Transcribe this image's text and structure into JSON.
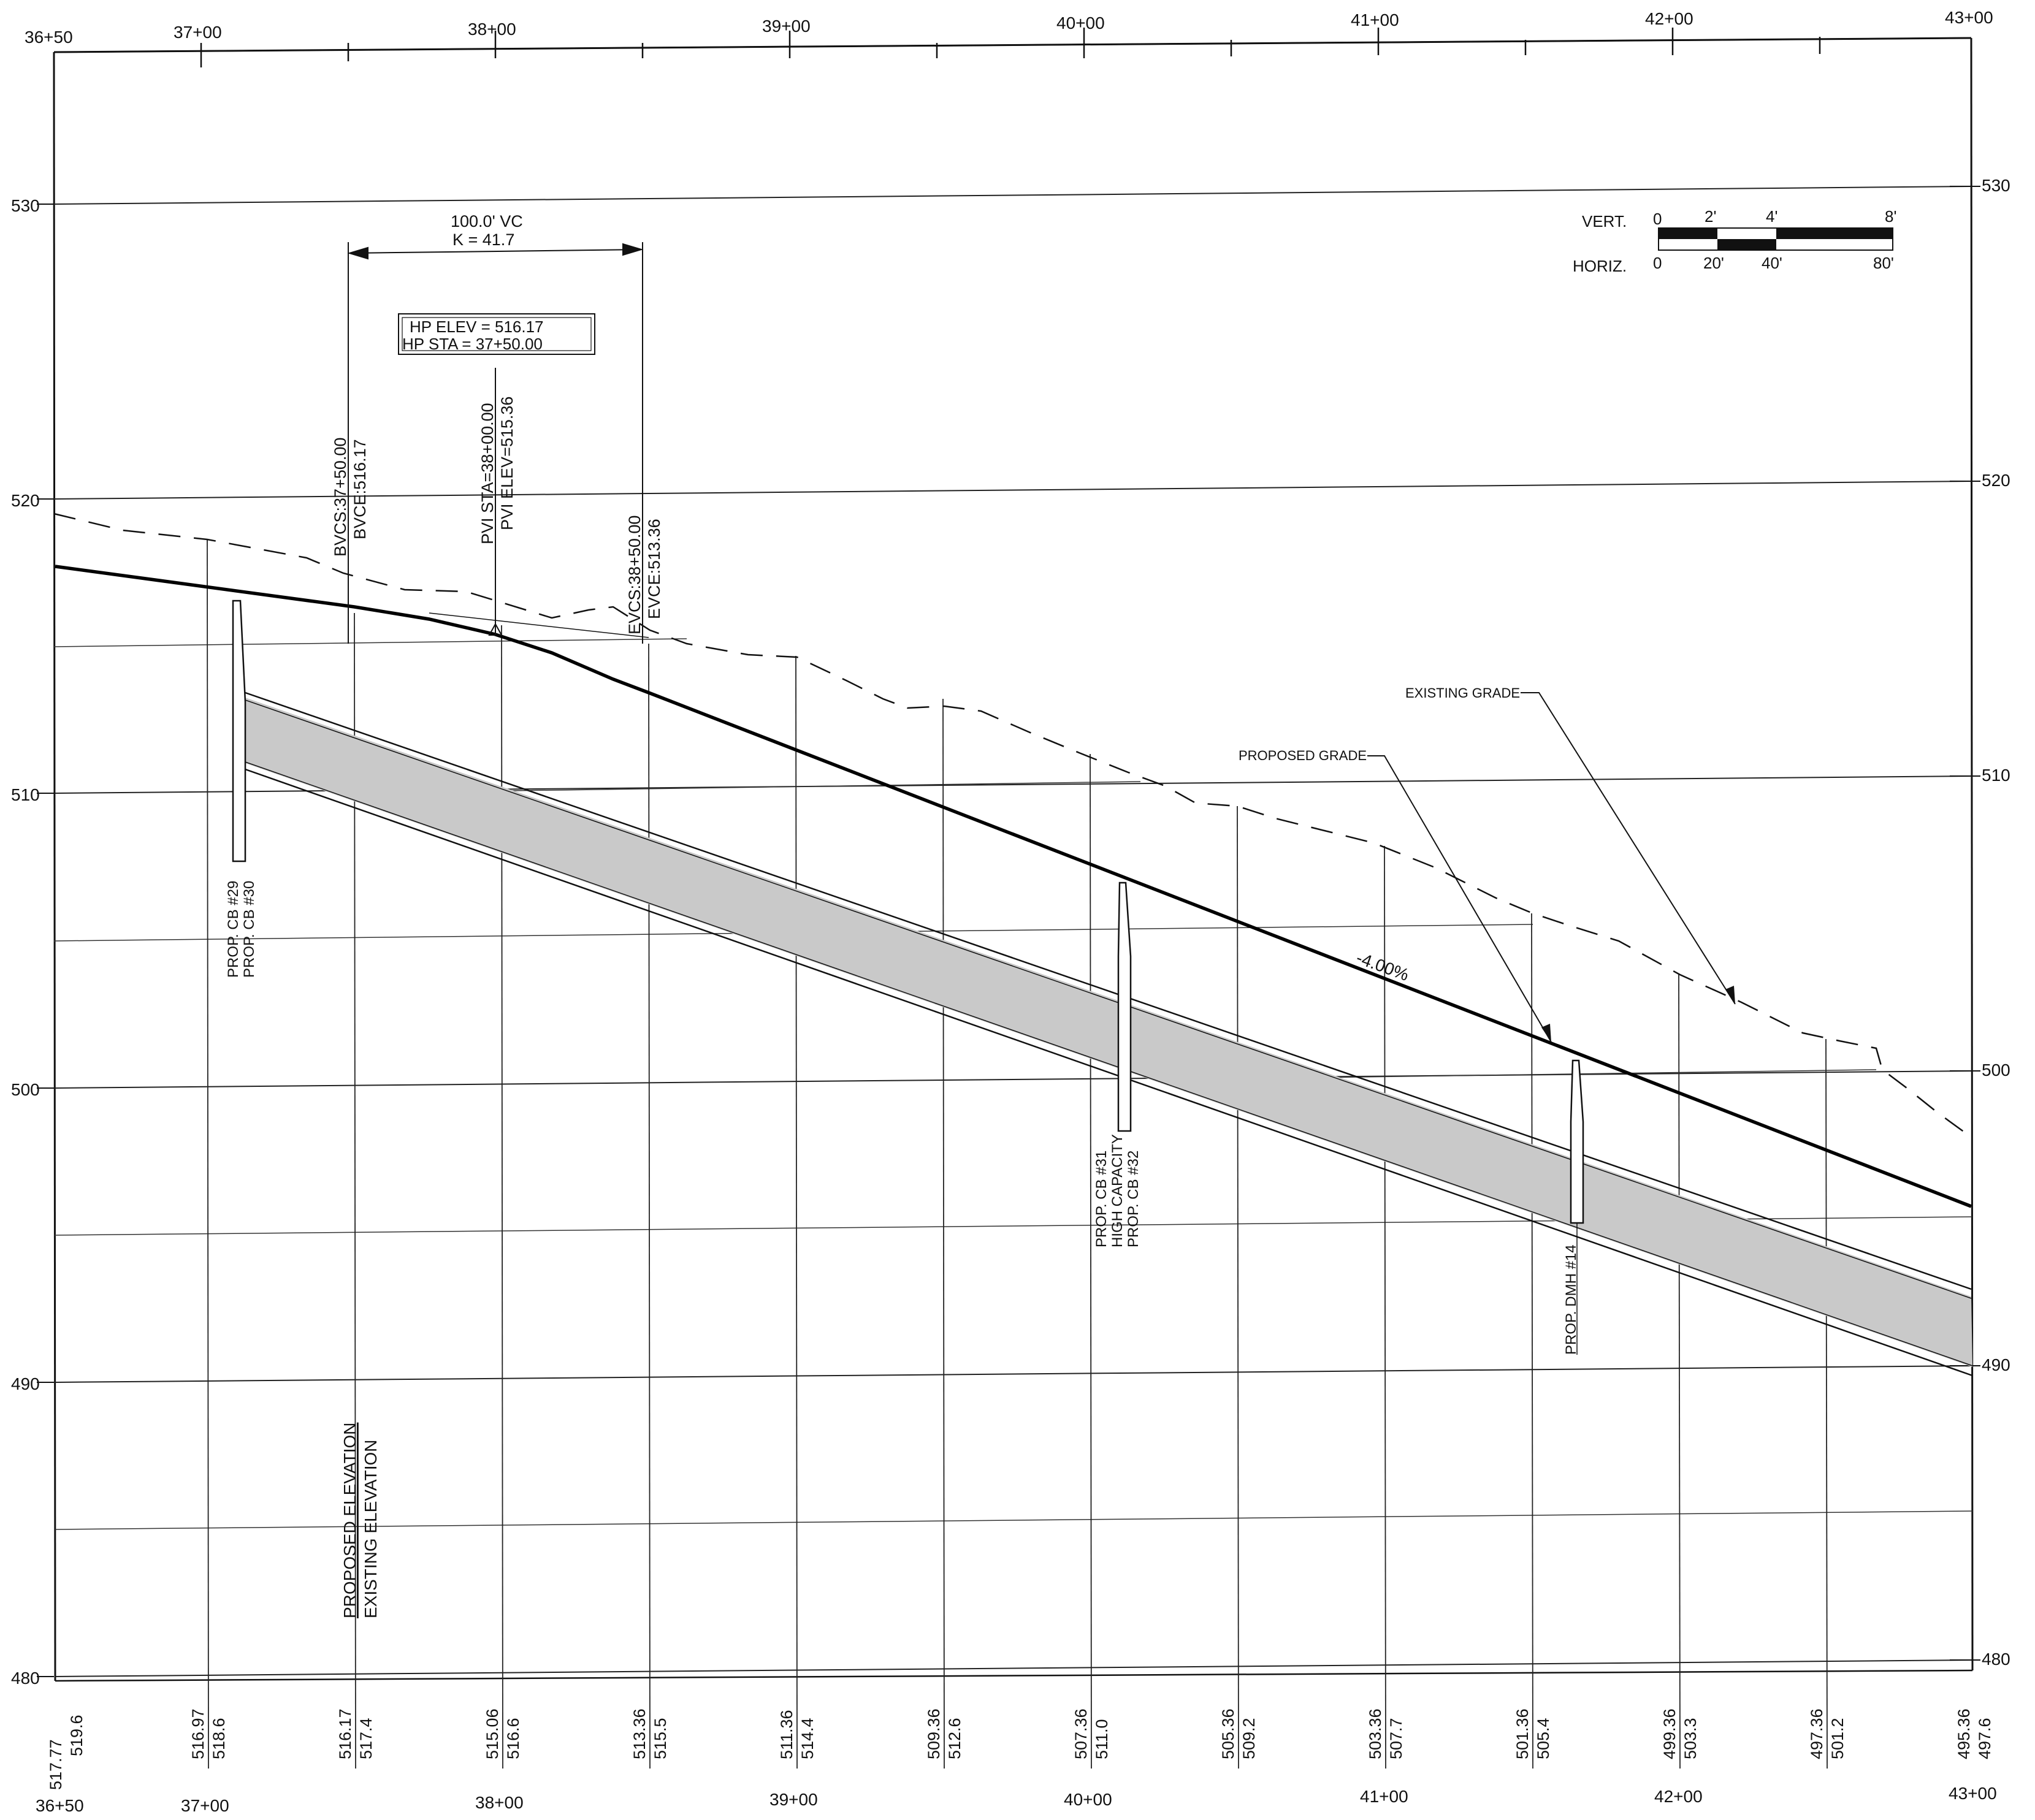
{
  "stations": {
    "top": [
      "36+50",
      "37+00",
      "38+00",
      "39+00",
      "40+00",
      "41+00",
      "42+00",
      "43+00"
    ],
    "bottom": [
      "36+50",
      "37+00",
      "38+00",
      "39+00",
      "40+00",
      "41+00",
      "42+00",
      "43+00"
    ]
  },
  "elevation_labels": {
    "left": [
      "530",
      "520",
      "510",
      "500",
      "490",
      "480"
    ],
    "right": [
      "530",
      "520",
      "510",
      "500",
      "490",
      "480"
    ]
  },
  "vertical_curve": {
    "length_label": "100.0' VC",
    "k_label": "K = 41.7",
    "hp_elev": "HP ELEV = 516.17",
    "hp_sta": "HP STA = 37+50.00",
    "bvcs": "BVCS:37+50.00",
    "bvce": "BVCE:516.17",
    "pvi_sta": "PVI STA=38+00.00",
    "pvi_elev": "PVI ELEV=515.36",
    "evcs": "EVCS:38+50.00",
    "evce": "EVCE:513.36"
  },
  "grade_label": "-4.00%",
  "callouts": {
    "existing_grade": "EXISTING GRADE",
    "proposed_grade": "PROPOSED GRADE"
  },
  "structures": {
    "cb29": "PROP. CB #29",
    "cb30": "PROP. CB #30",
    "cb31": "PROP. CB #31",
    "high_capacity": "HIGH CAPACITY",
    "cb32": "PROP. CB #32",
    "dmh14": "PROP. DMH #14"
  },
  "row_labels": {
    "proposed": "PROPOSED ELEVATION",
    "existing": "EXISTING ELEVATION"
  },
  "scale_bar": {
    "vert_label": "VERT.",
    "horiz_label": "HORIZ.",
    "vert_ticks": [
      "0",
      "2'",
      "4'",
      "8'"
    ],
    "horiz_ticks": [
      "0",
      "20'",
      "40'",
      "80'"
    ]
  },
  "elevation_table": [
    {
      "proposed": "517.77",
      "existing": "519.6"
    },
    {
      "proposed": "516.97",
      "existing": "518.6"
    },
    {
      "proposed": "516.17",
      "existing": "517.4"
    },
    {
      "proposed": "515.06",
      "existing": "516.6"
    },
    {
      "proposed": "513.36",
      "existing": "515.5"
    },
    {
      "proposed": "511.36",
      "existing": "514.4"
    },
    {
      "proposed": "509.36",
      "existing": "512.6"
    },
    {
      "proposed": "507.36",
      "existing": "511.0"
    },
    {
      "proposed": "505.36",
      "existing": "509.2"
    },
    {
      "proposed": "503.36",
      "existing": "507.7"
    },
    {
      "proposed": "501.36",
      "existing": "505.4"
    },
    {
      "proposed": "499.36",
      "existing": "503.3"
    },
    {
      "proposed": "497.36",
      "existing": "501.2"
    },
    {
      "proposed": "495.36",
      "existing": "497.6"
    }
  ]
}
